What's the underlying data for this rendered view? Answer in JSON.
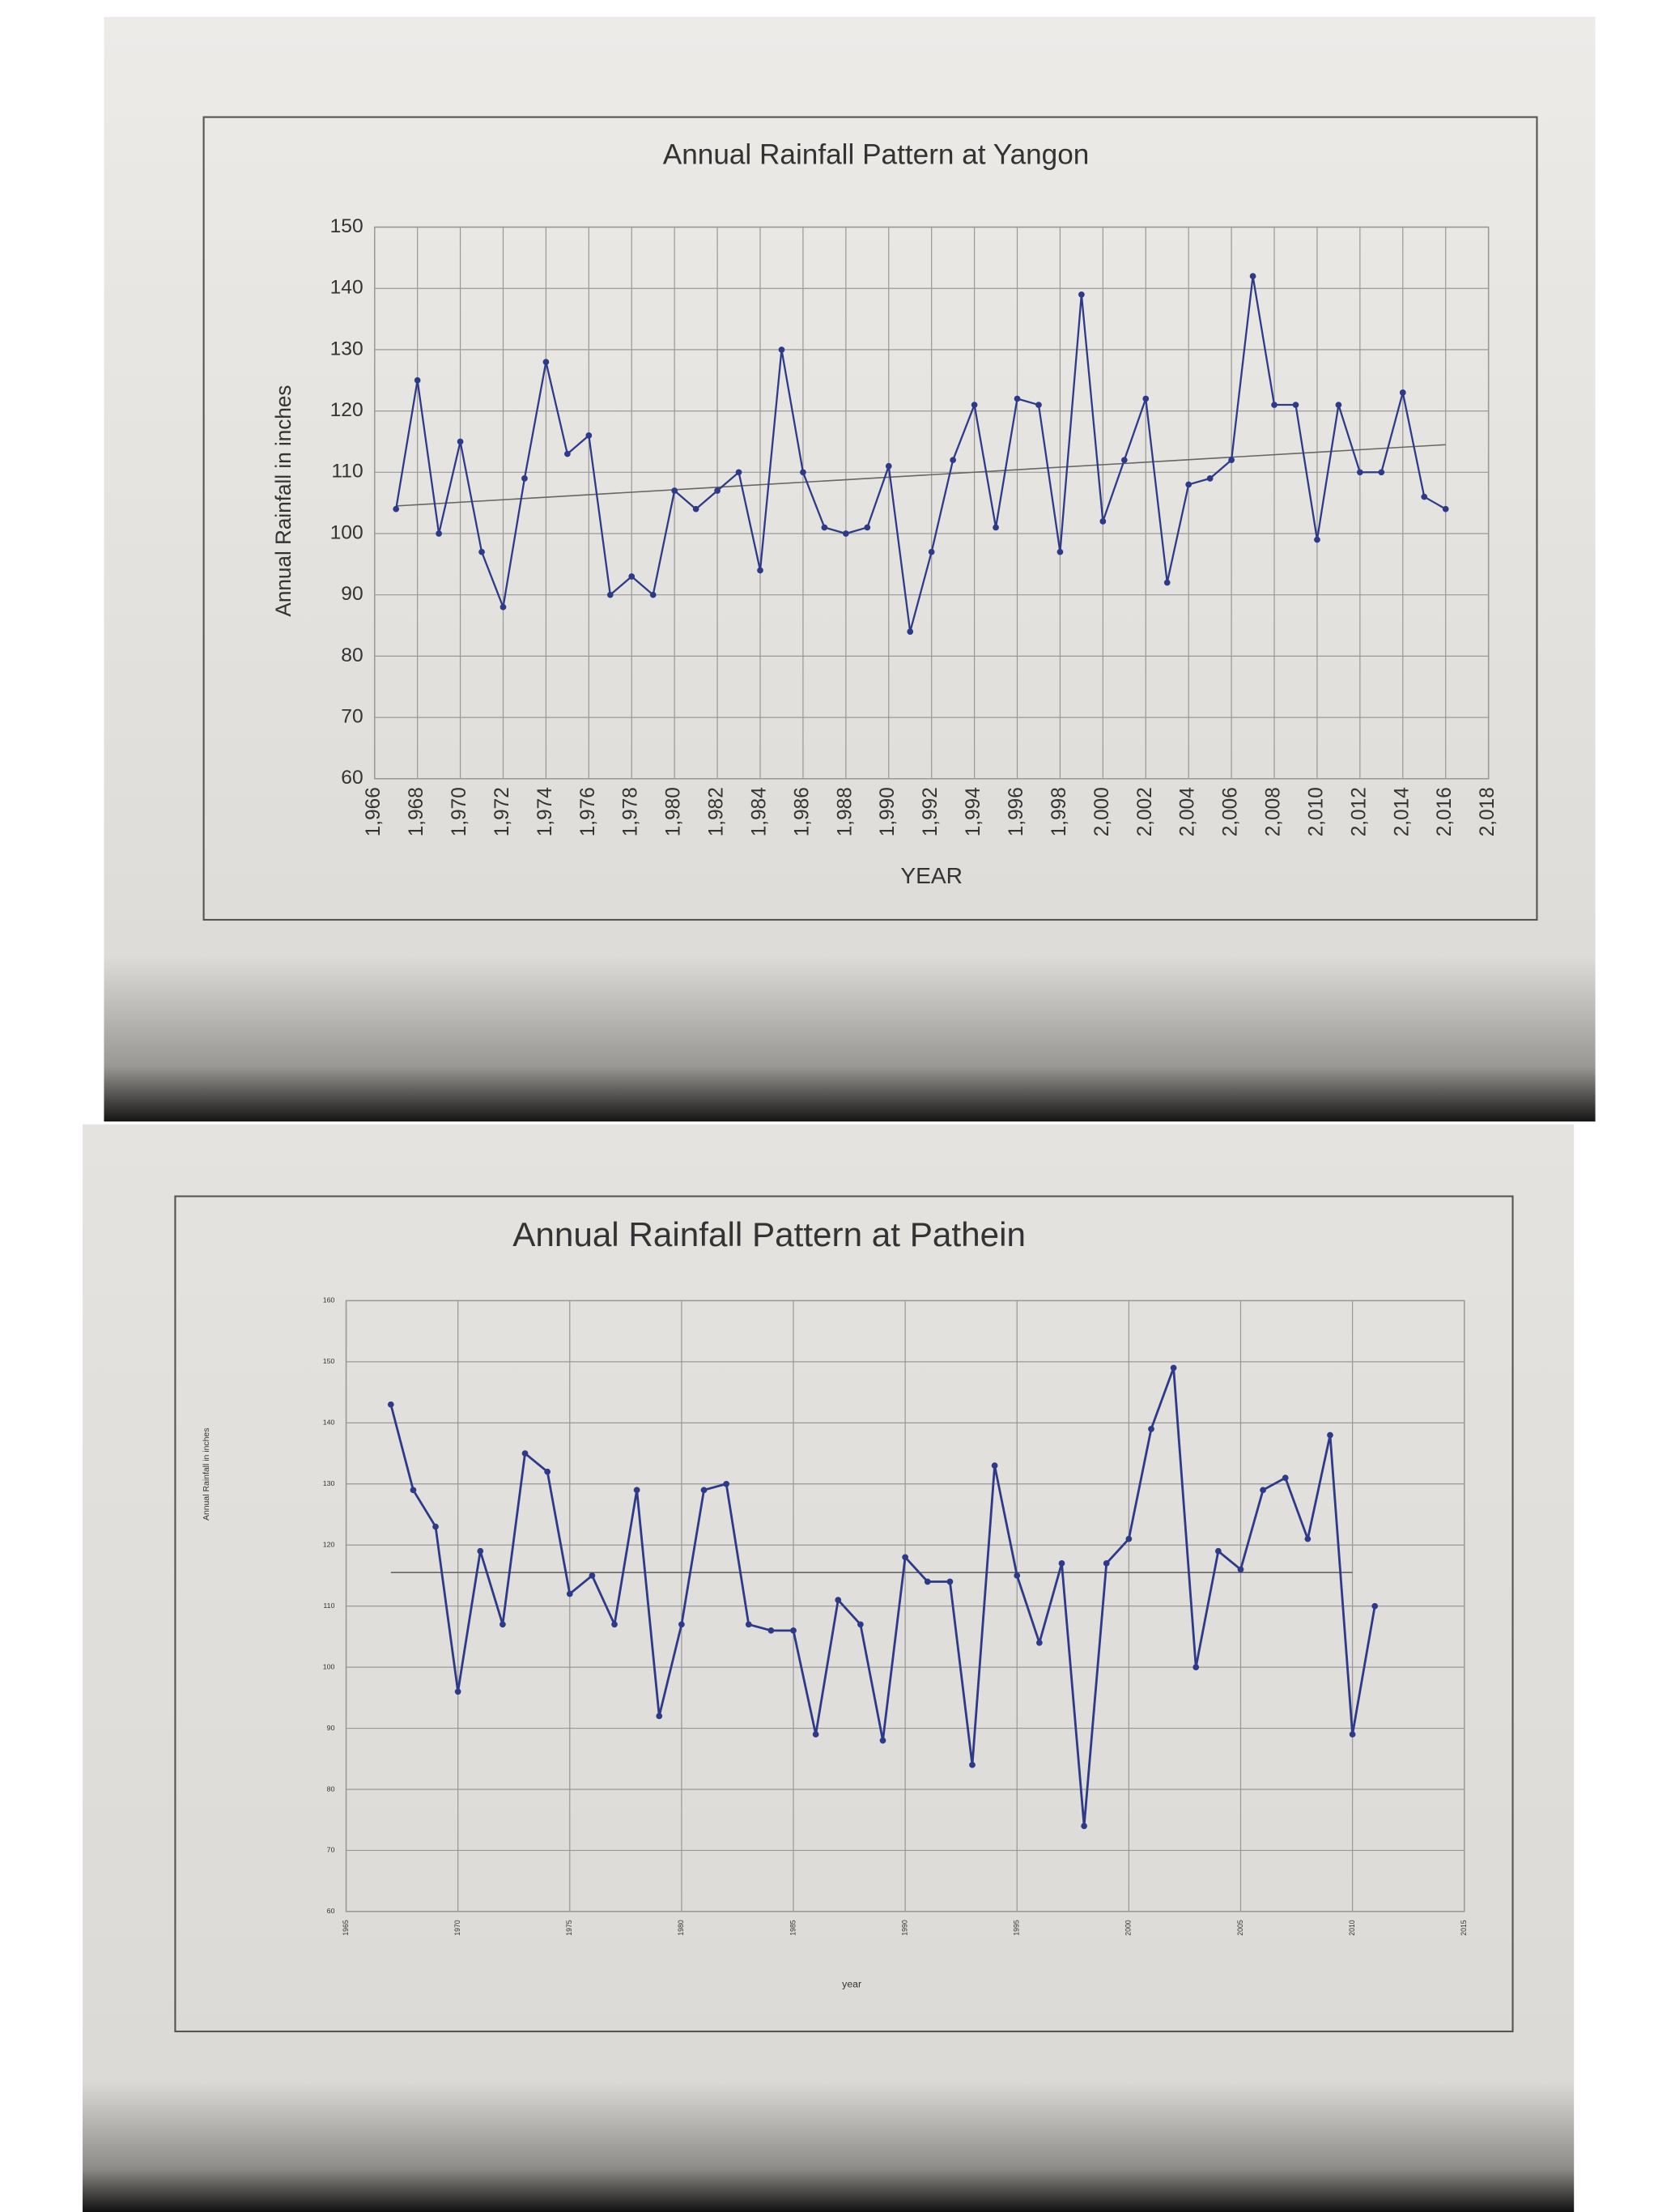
{
  "chart_data": [
    {
      "type": "line",
      "title": "Annual Rainfall Pattern at Yangon",
      "x_label": "YEAR",
      "y_label": "Annual Rainfall in inches",
      "x": [
        1967,
        1968,
        1969,
        1970,
        1971,
        1972,
        1973,
        1974,
        1975,
        1976,
        1977,
        1978,
        1979,
        1980,
        1981,
        1982,
        1983,
        1984,
        1985,
        1986,
        1987,
        1988,
        1989,
        1990,
        1991,
        1992,
        1993,
        1994,
        1995,
        1996,
        1997,
        1998,
        1999,
        2000,
        2001,
        2002,
        2003,
        2004,
        2005,
        2006,
        2007,
        2008,
        2009,
        2010,
        2011,
        2012,
        2013,
        2014,
        2015,
        2016
      ],
      "series": [
        {
          "color": "#2e3a87",
          "values": [
            104,
            125,
            100,
            115,
            97,
            88,
            109,
            128,
            113,
            116,
            90,
            93,
            90,
            107,
            104,
            107,
            110,
            94,
            130,
            110,
            101,
            100,
            101,
            111,
            84,
            97,
            112,
            121,
            101,
            122,
            121,
            97,
            139,
            102,
            112,
            122,
            92,
            108,
            109,
            112,
            142,
            121,
            121,
            99,
            121,
            110,
            110,
            123,
            106,
            104
          ]
        }
      ],
      "trendline": {
        "x": [
          1967,
          2016
        ],
        "values": [
          104.5,
          114.5
        ],
        "color": "#666"
      },
      "xlim": [
        1966,
        2018
      ],
      "xticks": [
        {
          "value": 1966,
          "label": "1,966"
        },
        {
          "value": 1968,
          "label": "1,968"
        },
        {
          "value": 1970,
          "label": "1,970"
        },
        {
          "value": 1972,
          "label": "1,972"
        },
        {
          "value": 1974,
          "label": "1,974"
        },
        {
          "value": 1976,
          "label": "1,976"
        },
        {
          "value": 1978,
          "label": "1,978"
        },
        {
          "value": 1980,
          "label": "1,980"
        },
        {
          "value": 1982,
          "label": "1,982"
        },
        {
          "value": 1984,
          "label": "1,984"
        },
        {
          "value": 1986,
          "label": "1,986"
        },
        {
          "value": 1988,
          "label": "1,988"
        },
        {
          "value": 1990,
          "label": "1,990"
        },
        {
          "value": 1992,
          "label": "1,992"
        },
        {
          "value": 1994,
          "label": "1,994"
        },
        {
          "value": 1996,
          "label": "1,996"
        },
        {
          "value": 1998,
          "label": "1,998"
        },
        {
          "value": 2000,
          "label": "2,000"
        },
        {
          "value": 2002,
          "label": "2,002"
        },
        {
          "value": 2004,
          "label": "2,004"
        },
        {
          "value": 2006,
          "label": "2,006"
        },
        {
          "value": 2008,
          "label": "2,008"
        },
        {
          "value": 2010,
          "label": "2,010"
        },
        {
          "value": 2012,
          "label": "2,012"
        },
        {
          "value": 2014,
          "label": "2,014"
        },
        {
          "value": 2016,
          "label": "2,016"
        },
        {
          "value": 2018,
          "label": "2,018"
        }
      ],
      "ylim": [
        60,
        150
      ],
      "yticks": [
        60,
        70,
        80,
        90,
        100,
        110,
        120,
        130,
        140,
        150
      ],
      "grid": true
    },
    {
      "type": "line",
      "title": "Annual Rainfall Pattern at Pathein",
      "x_label": "year",
      "y_label": "Annual Rainfall in inches",
      "x": [
        1967,
        1968,
        1969,
        1970,
        1971,
        1972,
        1973,
        1974,
        1975,
        1976,
        1977,
        1978,
        1979,
        1980,
        1981,
        1982,
        1983,
        1984,
        1985,
        1986,
        1987,
        1988,
        1989,
        1990,
        1991,
        1992,
        1993,
        1994,
        1995,
        1996,
        1997,
        1998,
        1999,
        2000,
        2001,
        2002,
        2003,
        2004,
        2005,
        2006,
        2007,
        2008,
        2009,
        2010,
        2011
      ],
      "series": [
        {
          "color": "#2e3a87",
          "values": [
            143,
            129,
            123,
            96,
            119,
            107,
            135,
            132,
            112,
            115,
            107,
            129,
            92,
            107,
            129,
            130,
            107,
            106,
            106,
            89,
            111,
            107,
            88,
            118,
            114,
            114,
            84,
            133,
            115,
            104,
            117,
            74,
            117,
            121,
            139,
            149,
            100,
            119,
            116,
            129,
            131,
            121,
            138,
            89,
            110
          ]
        }
      ],
      "trendline": {
        "x": [
          1967,
          2010
        ],
        "values": [
          115.5,
          115.5
        ],
        "color": "#666"
      },
      "xlim": [
        1965,
        2015
      ],
      "xticks": [
        1965,
        1970,
        1975,
        1980,
        1985,
        1990,
        1995,
        2000,
        2005,
        2010,
        2015
      ],
      "ylim": [
        60,
        160
      ],
      "yticks": [
        60,
        70,
        80,
        90,
        100,
        110,
        120,
        130,
        140,
        150,
        160
      ],
      "grid": true
    }
  ]
}
